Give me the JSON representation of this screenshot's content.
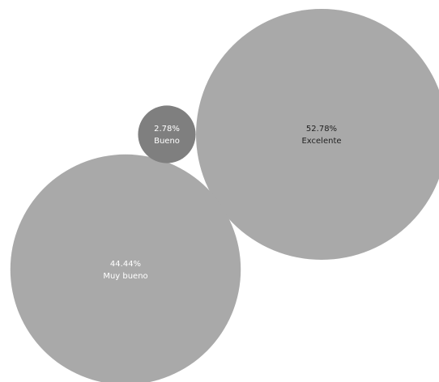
{
  "chart_data": {
    "type": "bubble",
    "title": "",
    "legend": "none",
    "values_unit": "percent",
    "bubbles": [
      {
        "category": "Excelente",
        "value": 52.78,
        "label": "52.78%",
        "color": "#a9a9a9",
        "text_color": "#222222"
      },
      {
        "category": "Muy bueno",
        "value": 44.44,
        "label": "44.44%",
        "color": "#a9a9a9",
        "text_color": "#ffffff"
      },
      {
        "category": "Bueno",
        "value": 2.78,
        "label": "2.78%",
        "color": "#7f7f7f",
        "text_color": "#ffffff"
      }
    ]
  }
}
